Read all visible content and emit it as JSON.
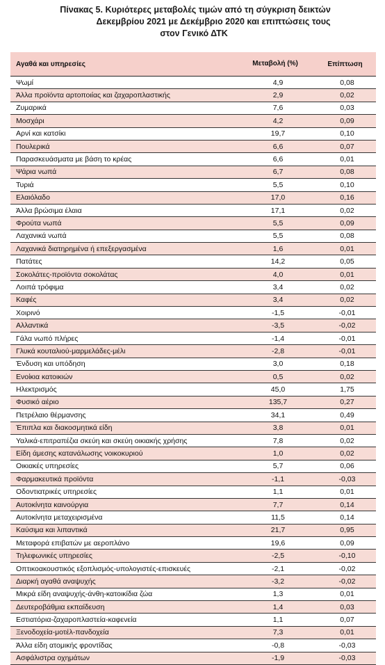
{
  "title": {
    "line1": "Πίνακας  5. Κυριότερες μεταβολές τιμών από τη σύγκριση δεικτών",
    "line2": "Δεκεμβρίου 2021 με Δεκέμβριο 2020 και επιπτώσεις τους",
    "line3": "στον Γενικό ΔΤΚ"
  },
  "table": {
    "headers": {
      "item": "Αγαθά και υπηρεσίες",
      "change": "Μεταβολή (%)",
      "impact": "Επίπτωση"
    },
    "rows": [
      {
        "name": "Ψωμί",
        "change": "4,9",
        "impact": "0,08"
      },
      {
        "name": "Άλλα προϊόντα αρτοποιίας και ζαχαροπλαστικής",
        "change": "2,9",
        "impact": "0,02"
      },
      {
        "name": "Ζυμαρικά",
        "change": "7,6",
        "impact": "0,03"
      },
      {
        "name": "Μοσχάρι",
        "change": "4,2",
        "impact": "0,09"
      },
      {
        "name": "Αρνί και κατσίκι",
        "change": "19,7",
        "impact": "0,10"
      },
      {
        "name": "Πουλερικά",
        "change": "6,6",
        "impact": "0,07"
      },
      {
        "name": "Παρασκευάσματα με βάση το κρέας",
        "change": "6,6",
        "impact": "0,01"
      },
      {
        "name": "Ψάρια νωπά",
        "change": "6,7",
        "impact": "0,08"
      },
      {
        "name": "Τυριά",
        "change": "5,5",
        "impact": "0,10"
      },
      {
        "name": "Ελαιόλαδο",
        "change": "17,0",
        "impact": "0,16"
      },
      {
        "name": "Άλλα βρώσιμα έλαια",
        "change": "17,1",
        "impact": "0,02"
      },
      {
        "name": "Φρούτα νωπά",
        "change": "5,5",
        "impact": "0,09"
      },
      {
        "name": "Λαχανικά νωπά",
        "change": "5,5",
        "impact": "0,08"
      },
      {
        "name": "Λαχανικά διατηρημένα ή επεξεργασμένα",
        "change": "1,6",
        "impact": "0,01"
      },
      {
        "name": "Πατάτες",
        "change": "14,2",
        "impact": "0,05"
      },
      {
        "name": "Σοκολάτες-προϊόντα σοκολάτας",
        "change": "4,0",
        "impact": "0,01"
      },
      {
        "name": "Λοιπά τρόφιμα",
        "change": "3,4",
        "impact": "0,02"
      },
      {
        "name": "Καφές",
        "change": "3,4",
        "impact": "0,02"
      },
      {
        "name": "Χοιρινό",
        "change": "-1,5",
        "impact": "-0,01"
      },
      {
        "name": "Αλλαντικά",
        "change": "-3,5",
        "impact": "-0,02"
      },
      {
        "name": "Γάλα νωπό πλήρες",
        "change": "-1,4",
        "impact": "-0,01"
      },
      {
        "name": "Γλυκά κουταλιού-μαρμελάδες-μέλι",
        "change": "-2,8",
        "impact": "-0,01"
      },
      {
        "name": "Ένδυση και υπόδηση",
        "change": "3,0",
        "impact": "0,18"
      },
      {
        "name": "Ενοίκια κατοικιών",
        "change": "0,5",
        "impact": "0,02"
      },
      {
        "name": "Ηλεκτρισμός",
        "change": "45,0",
        "impact": "1,75"
      },
      {
        "name": "Φυσικό αέριο",
        "change": "135,7",
        "impact": "0,27"
      },
      {
        "name": "Πετρέλαιο θέρμανσης",
        "change": "34,1",
        "impact": "0,49"
      },
      {
        "name": "Έπιπλα και διακοσμητικά είδη",
        "change": "3,8",
        "impact": "0,01"
      },
      {
        "name": "Υαλικά-επιτραπέζια σκεύη και σκεύη οικιακής χρήσης",
        "change": "7,8",
        "impact": "0,02"
      },
      {
        "name": "Είδη άμεσης κατανάλωσης νοικοκυριού",
        "change": "1,0",
        "impact": "0,02"
      },
      {
        "name": "Οικιακές υπηρεσίες",
        "change": "5,7",
        "impact": "0,06"
      },
      {
        "name": "Φαρμακευτικά προϊόντα",
        "change": "-1,1",
        "impact": "-0,03"
      },
      {
        "name": "Οδοντιατρικές υπηρεσίες",
        "change": "1,1",
        "impact": "0,01"
      },
      {
        "name": "Αυτοκίνητα καινούργια",
        "change": "7,7",
        "impact": "0,14"
      },
      {
        "name": "Αυτοκίνητα μεταχειρισμένα",
        "change": "11,5",
        "impact": "0,14"
      },
      {
        "name": "Καύσιμα και λιπαντικά",
        "change": "21,7",
        "impact": "0,95"
      },
      {
        "name": "Μεταφορά επιβατών με αεροπλάνο",
        "change": "19,6",
        "impact": "0,09"
      },
      {
        "name": "Τηλεφωνικές υπηρεσίες",
        "change": "-2,5",
        "impact": "-0,10"
      },
      {
        "name": "Οπτικοακουστικός εξοπλισμός-υπολογιστές-επισκευές",
        "change": "-2,1",
        "impact": "-0,02"
      },
      {
        "name": "Διαρκή αγαθά αναψυχής",
        "change": "-3,2",
        "impact": "-0,02"
      },
      {
        "name": "Μικρά είδη αναψυχής-άνθη-κατοικίδια ζώα",
        "change": "1,3",
        "impact": "0,01"
      },
      {
        "name": "Δευτεροβάθμια εκπαίδευση",
        "change": "1,4",
        "impact": "0,03"
      },
      {
        "name": "Εστιατόρια-ζαχαροπλαστεία-καφενεία",
        "change": "1,1",
        "impact": "0,07"
      },
      {
        "name": "Ξενοδοχεία-μοτέλ-πανδοχεία",
        "change": "7,3",
        "impact": "0,01"
      },
      {
        "name": "Άλλα είδη ατομικής φροντίδας",
        "change": "-0,8",
        "impact": "-0,03"
      },
      {
        "name": "Ασφάλιστρα οχημάτων",
        "change": "-1,9",
        "impact": "-0,03"
      }
    ]
  }
}
